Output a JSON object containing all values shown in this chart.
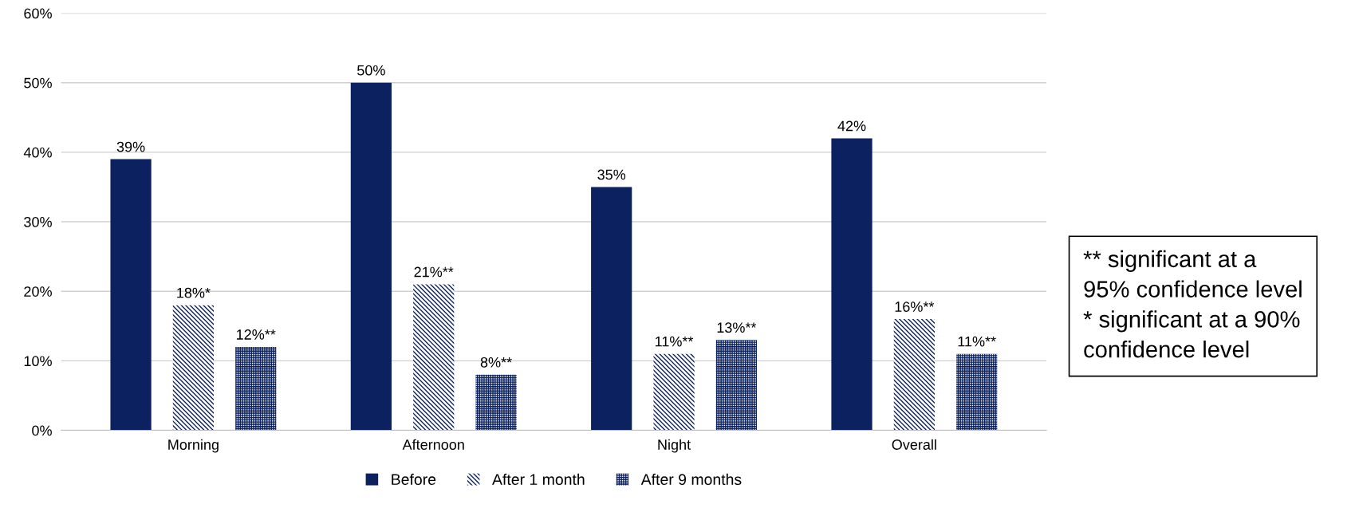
{
  "chart_data": {
    "type": "bar",
    "categories": [
      "Morning",
      "Afternoon",
      "Night",
      "Overall"
    ],
    "series": [
      {
        "name": "Before",
        "color": "#0b2160",
        "values": [
          39,
          50,
          35,
          42
        ],
        "value_labels": [
          "39%",
          "50%",
          "35%",
          "42%"
        ]
      },
      {
        "name": "After 1 month",
        "color": "#0b2160",
        "values": [
          18,
          21,
          11,
          16
        ],
        "value_labels": [
          "18%*",
          "21%**",
          "11%**",
          "16%**"
        ]
      },
      {
        "name": "After 9 months",
        "color": "#0b2160",
        "values": [
          12,
          8,
          13,
          11
        ],
        "value_labels": [
          "12%**",
          "8%**",
          "13%**",
          "11%**"
        ]
      }
    ],
    "ylim": [
      0,
      60
    ],
    "yticks": [
      {
        "value": 0,
        "label": "0%"
      },
      {
        "value": 10,
        "label": "10%"
      },
      {
        "value": 20,
        "label": "20%"
      },
      {
        "value": 30,
        "label": "30%"
      },
      {
        "value": 40,
        "label": "40%"
      },
      {
        "value": 50,
        "label": "50%"
      },
      {
        "value": 60,
        "label": "60%"
      }
    ],
    "grid": "y",
    "legend": "bottom",
    "annotations": [
      "** significant at a\n95% confidence level\n* significant at a 90%\nconfidence level"
    ]
  }
}
